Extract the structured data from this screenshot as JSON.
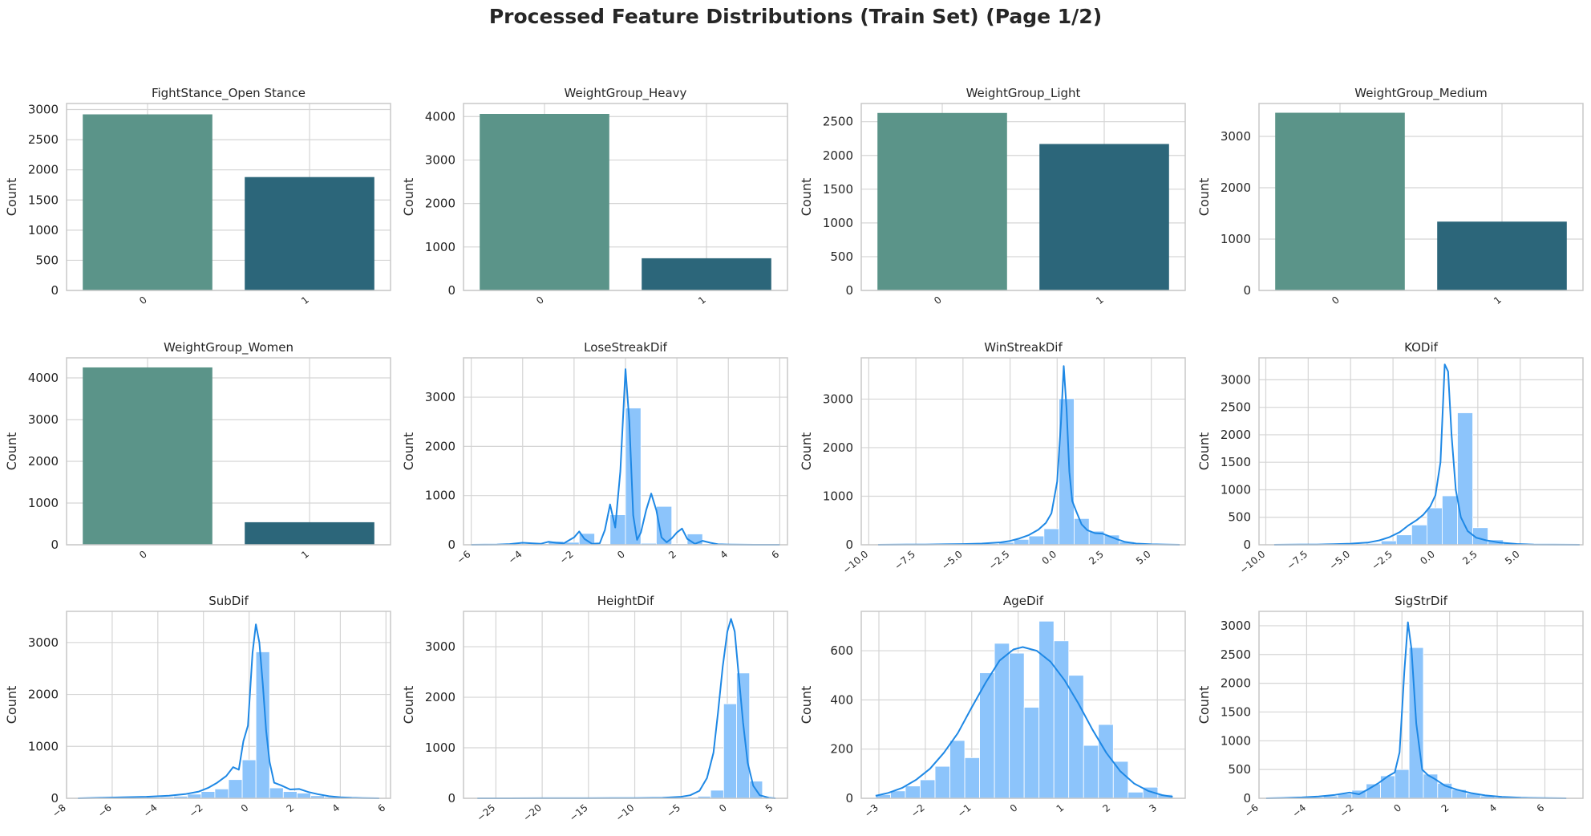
{
  "figure": {
    "title": "Processed Feature Distributions (Train Set) (Page 1/2)"
  },
  "colors": {
    "bar_0": "#5b9489",
    "bar_1": "#2c667a",
    "hist_fill": "#8cc4fb",
    "kde_line": "#1e88e5",
    "grid": "#d5d5d5",
    "spine": "#c8c8c8"
  },
  "chart_data": [
    {
      "type": "bar",
      "title": "FightStance_Open Stance",
      "ylabel": "Count",
      "xlabel": "",
      "categories": [
        "0",
        "1"
      ],
      "values": [
        2920,
        1880
      ],
      "ylim": [
        0,
        3100
      ],
      "yticks": [
        0,
        500,
        1000,
        1500,
        2000,
        2500,
        3000
      ],
      "grid": true
    },
    {
      "type": "bar",
      "title": "WeightGroup_Heavy",
      "ylabel": "Count",
      "xlabel": "",
      "categories": [
        "0",
        "1"
      ],
      "values": [
        4060,
        740
      ],
      "ylim": [
        0,
        4300
      ],
      "yticks": [
        0,
        1000,
        2000,
        3000,
        4000
      ],
      "grid": true
    },
    {
      "type": "bar",
      "title": "WeightGroup_Light",
      "ylabel": "Count",
      "xlabel": "",
      "categories": [
        "0",
        "1"
      ],
      "values": [
        2630,
        2170
      ],
      "ylim": [
        0,
        2770
      ],
      "yticks": [
        0,
        500,
        1000,
        1500,
        2000,
        2500
      ],
      "grid": true
    },
    {
      "type": "bar",
      "title": "WeightGroup_Medium",
      "ylabel": "Count",
      "xlabel": "",
      "categories": [
        "0",
        "1"
      ],
      "values": [
        3460,
        1340
      ],
      "ylim": [
        0,
        3640
      ],
      "yticks": [
        0,
        1000,
        2000,
        3000
      ],
      "grid": true
    },
    {
      "type": "bar",
      "title": "WeightGroup_Women",
      "ylabel": "Count",
      "xlabel": "",
      "categories": [
        "0",
        "1"
      ],
      "values": [
        4250,
        540
      ],
      "ylim": [
        0,
        4480
      ],
      "yticks": [
        0,
        1000,
        2000,
        3000,
        4000
      ],
      "grid": true
    },
    {
      "type": "histogram",
      "title": "LoseStreakDif",
      "ylabel": "Count",
      "xlabel": "",
      "xlim": [
        -6.3,
        6.3
      ],
      "ylim": [
        0,
        3800
      ],
      "xticks": [
        -6,
        -4,
        -2,
        0,
        2,
        4,
        6
      ],
      "yticks": [
        0,
        1000,
        2000,
        3000
      ],
      "bin_edges": [
        -6.0,
        -5.4,
        -4.8,
        -4.2,
        -3.6,
        -3.0,
        -2.4,
        -1.8,
        -1.2,
        -0.6,
        0.0,
        0.6,
        1.2,
        1.8,
        2.4,
        3.0,
        3.6,
        4.2,
        4.8,
        5.4,
        6.0
      ],
      "counts": [
        0,
        0,
        0,
        3,
        20,
        70,
        50,
        230,
        15,
        610,
        2780,
        30,
        780,
        20,
        220,
        20,
        0,
        0,
        0,
        0
      ],
      "kde": {
        "x": [
          -6,
          -5,
          -4.5,
          -4,
          -3.6,
          -3.3,
          -3.0,
          -2.7,
          -2.4,
          -2.0,
          -1.8,
          -1.6,
          -1.3,
          -1.0,
          -0.8,
          -0.6,
          -0.4,
          -0.2,
          0.0,
          0.15,
          0.3,
          0.45,
          0.6,
          0.8,
          1.0,
          1.2,
          1.4,
          1.6,
          1.8,
          2.0,
          2.2,
          2.4,
          2.7,
          3.0,
          3.3,
          3.6,
          4.0,
          4.5,
          5,
          6
        ],
        "y": [
          0,
          5,
          15,
          40,
          30,
          20,
          60,
          40,
          30,
          150,
          270,
          120,
          20,
          30,
          300,
          820,
          350,
          1500,
          3570,
          2500,
          600,
          100,
          250,
          700,
          1040,
          700,
          150,
          50,
          130,
          250,
          330,
          120,
          20,
          80,
          40,
          10,
          5,
          2,
          0,
          0
        ]
      },
      "grid": true
    },
    {
      "type": "histogram",
      "title": "WinStreakDif",
      "ylabel": "Count",
      "xlabel": "",
      "xlim": [
        -10.4,
        6.8
      ],
      "ylim": [
        0,
        3850
      ],
      "xticks": [
        -10.0,
        -7.5,
        -5.0,
        -2.5,
        0.0,
        2.5,
        5.0
      ],
      "yticks": [
        0,
        1000,
        2000,
        3000
      ],
      "bin_edges": [
        -9.5,
        -8.7,
        -7.9,
        -7.1,
        -6.3,
        -5.5,
        -4.7,
        -3.9,
        -3.1,
        -2.3,
        -1.5,
        -0.7,
        0.1,
        0.9,
        1.7,
        2.5,
        3.3,
        4.1,
        4.9,
        5.7,
        6.5
      ],
      "counts": [
        0,
        0,
        0,
        2,
        5,
        10,
        15,
        25,
        50,
        110,
        180,
        330,
        3010,
        540,
        280,
        200,
        60,
        15,
        5,
        0
      ],
      "kde": {
        "x": [
          -9.5,
          -8,
          -7,
          -6,
          -5,
          -4,
          -3,
          -2.5,
          -2,
          -1.5,
          -1.0,
          -0.6,
          -0.3,
          0.0,
          0.2,
          0.35,
          0.5,
          0.65,
          0.8,
          1.0,
          1.3,
          1.6,
          2.0,
          2.4,
          2.8,
          3.2,
          3.6,
          4.2,
          5.0,
          5.8,
          6.5
        ],
        "y": [
          0,
          3,
          5,
          10,
          15,
          25,
          50,
          80,
          130,
          200,
          310,
          450,
          650,
          1300,
          2500,
          3680,
          2800,
          1500,
          900,
          700,
          420,
          300,
          240,
          230,
          170,
          110,
          60,
          25,
          10,
          3,
          0
        ]
      },
      "grid": true
    },
    {
      "type": "histogram",
      "title": "KODif",
      "ylabel": "Count",
      "xlabel": "",
      "xlim": [
        -10.4,
        8.7
      ],
      "ylim": [
        0,
        3400
      ],
      "xticks": [
        -10.0,
        -7.5,
        -5.0,
        -2.5,
        0.0,
        2.5,
        5.0
      ],
      "yticks": [
        0,
        500,
        1000,
        1500,
        2000,
        2500,
        3000
      ],
      "bin_edges": [
        -9.5,
        -8.6,
        -7.7,
        -6.8,
        -5.9,
        -5.0,
        -4.1,
        -3.2,
        -2.3,
        -1.4,
        -0.5,
        0.4,
        1.3,
        2.2,
        3.1,
        4.0,
        4.9,
        5.8,
        6.7,
        7.6,
        8.5
      ],
      "counts": [
        0,
        0,
        0,
        2,
        5,
        10,
        25,
        70,
        180,
        360,
        670,
        890,
        2400,
        310,
        90,
        30,
        10,
        3,
        0,
        0
      ],
      "kde": {
        "x": [
          -9.5,
          -8,
          -7,
          -6,
          -5,
          -4,
          -3.3,
          -2.7,
          -2.1,
          -1.6,
          -1.1,
          -0.7,
          -0.3,
          0.0,
          0.3,
          0.55,
          0.75,
          0.95,
          1.2,
          1.5,
          1.9,
          2.4,
          3.0,
          3.8,
          4.8,
          5.8,
          7.0,
          8.5
        ],
        "y": [
          0,
          3,
          5,
          10,
          20,
          40,
          80,
          140,
          230,
          350,
          450,
          550,
          700,
          900,
          1500,
          3280,
          3150,
          2000,
          1000,
          500,
          250,
          130,
          80,
          40,
          15,
          5,
          2,
          0
        ]
      },
      "grid": true
    },
    {
      "type": "histogram",
      "title": "SubDif",
      "ylabel": "Count",
      "xlabel": "",
      "xlim": [
        -8.0,
        6.2
      ],
      "ylim": [
        0,
        3600
      ],
      "xticks": [
        -8,
        -6,
        -4,
        -2,
        0,
        2,
        4,
        6
      ],
      "yticks": [
        0,
        1000,
        2000,
        3000
      ],
      "bin_edges": [
        -7.5,
        -6.9,
        -6.3,
        -5.7,
        -5.1,
        -4.5,
        -3.9,
        -3.3,
        -2.7,
        -2.1,
        -1.5,
        -0.9,
        -0.3,
        0.3,
        0.9,
        1.5,
        2.1,
        2.7,
        3.3,
        3.9,
        4.5,
        5.1,
        5.7
      ],
      "counts": [
        0,
        0,
        5,
        10,
        15,
        20,
        25,
        40,
        80,
        130,
        180,
        360,
        740,
        2820,
        200,
        130,
        100,
        50,
        25,
        10,
        5,
        0
      ],
      "kde": {
        "x": [
          -7.5,
          -6.5,
          -5.5,
          -4.5,
          -3.5,
          -2.8,
          -2.2,
          -1.8,
          -1.4,
          -1.0,
          -0.7,
          -0.45,
          -0.25,
          -0.05,
          0.15,
          0.3,
          0.45,
          0.6,
          0.75,
          0.9,
          1.1,
          1.4,
          1.8,
          2.2,
          2.6,
          3.0,
          3.5,
          4.0,
          4.5,
          5.0,
          5.7
        ],
        "y": [
          0,
          10,
          20,
          30,
          50,
          80,
          130,
          200,
          300,
          430,
          600,
          550,
          1100,
          1400,
          2800,
          3350,
          3000,
          2200,
          1300,
          700,
          300,
          250,
          170,
          180,
          120,
          80,
          40,
          20,
          10,
          5,
          0
        ]
      },
      "grid": true
    },
    {
      "type": "histogram",
      "title": "HeightDif",
      "ylabel": "Count",
      "xlabel": "",
      "xlim": [
        -28.5,
        6.5
      ],
      "ylim": [
        0,
        3700
      ],
      "xticks": [
        -25,
        -20,
        -15,
        -10,
        -5,
        0,
        5
      ],
      "yticks": [
        0,
        1000,
        2000,
        3000
      ],
      "bin_edges": [
        -27.0,
        -25.6,
        -24.2,
        -22.8,
        -21.4,
        -20.0,
        -18.6,
        -17.2,
        -15.8,
        -14.4,
        -13.0,
        -11.6,
        -10.2,
        -8.8,
        -7.4,
        -6.0,
        -4.6,
        -3.2,
        -1.8,
        -0.4,
        1.0,
        2.4,
        3.8,
        5.2
      ],
      "counts": [
        2,
        0,
        0,
        0,
        0,
        0,
        0,
        0,
        0,
        0,
        0,
        0,
        0,
        0,
        2,
        5,
        20,
        40,
        160,
        1870,
        2480,
        340,
        10
      ],
      "kde": {
        "x": [
          -27,
          -20,
          -15,
          -10,
          -7,
          -5,
          -4,
          -3,
          -2.2,
          -1.5,
          -1.0,
          -0.5,
          0.0,
          0.4,
          0.8,
          1.2,
          1.7,
          2.2,
          2.8,
          3.5,
          4.5,
          5.2
        ],
        "y": [
          0,
          1,
          2,
          5,
          10,
          30,
          60,
          150,
          400,
          900,
          1700,
          2600,
          3300,
          3550,
          3300,
          2500,
          1500,
          700,
          250,
          60,
          10,
          0
        ]
      },
      "grid": true
    },
    {
      "type": "histogram",
      "title": "AgeDif",
      "ylabel": "Count",
      "xlabel": "",
      "xlim": [
        -3.38,
        3.6
      ],
      "ylim": [
        0,
        760
      ],
      "xticks": [
        -3,
        -2,
        -1,
        0,
        1,
        2,
        3
      ],
      "yticks": [
        0,
        200,
        400,
        600
      ],
      "bin_edges": [
        -3.07,
        -2.75,
        -2.43,
        -2.11,
        -1.79,
        -1.47,
        -1.15,
        -0.83,
        -0.51,
        -0.19,
        0.13,
        0.45,
        0.77,
        1.09,
        1.41,
        1.73,
        2.05,
        2.37,
        2.69,
        3.01,
        3.33
      ],
      "counts": [
        15,
        30,
        50,
        75,
        130,
        235,
        165,
        510,
        630,
        590,
        370,
        720,
        640,
        500,
        215,
        300,
        150,
        25,
        45,
        15
      ],
      "kde": {
        "x": [
          -3.07,
          -2.8,
          -2.5,
          -2.2,
          -1.9,
          -1.6,
          -1.3,
          -1.0,
          -0.7,
          -0.4,
          -0.1,
          0.1,
          0.4,
          0.7,
          1.0,
          1.3,
          1.6,
          1.9,
          2.2,
          2.5,
          2.8,
          3.1,
          3.33
        ],
        "y": [
          10,
          22,
          42,
          75,
          120,
          185,
          265,
          370,
          470,
          560,
          605,
          615,
          600,
          555,
          480,
          385,
          280,
          185,
          110,
          60,
          30,
          13,
          6
        ]
      },
      "grid": true
    },
    {
      "type": "histogram",
      "title": "SigStrDif",
      "ylabel": "Count",
      "xlabel": "",
      "xlim": [
        -6.0,
        7.6
      ],
      "ylim": [
        0,
        3250
      ],
      "xticks": [
        -6,
        -4,
        -2,
        0,
        2,
        4,
        6
      ],
      "yticks": [
        0,
        500,
        1000,
        1500,
        2000,
        2500,
        3000
      ],
      "bin_edges": [
        -5.7,
        -5.1,
        -4.5,
        -3.9,
        -3.3,
        -2.7,
        -2.1,
        -1.5,
        -0.9,
        -0.3,
        0.3,
        0.9,
        1.5,
        2.1,
        2.7,
        3.3,
        3.9,
        4.5,
        5.1,
        5.7,
        6.3,
        6.9
      ],
      "counts": [
        2,
        5,
        10,
        20,
        40,
        80,
        140,
        250,
        390,
        500,
        2620,
        420,
        260,
        150,
        80,
        40,
        20,
        10,
        5,
        2,
        0
      ],
      "kde": {
        "x": [
          -5.7,
          -5,
          -4.2,
          -3.5,
          -2.8,
          -2.2,
          -1.8,
          -1.4,
          -1.0,
          -0.6,
          -0.3,
          -0.1,
          0.1,
          0.25,
          0.4,
          0.6,
          0.85,
          1.1,
          1.4,
          1.8,
          2.3,
          2.9,
          3.5,
          4.2,
          5.0,
          6.0,
          6.9
        ],
        "y": [
          0,
          5,
          15,
          30,
          60,
          100,
          70,
          160,
          260,
          380,
          450,
          800,
          2200,
          3060,
          2600,
          1300,
          500,
          400,
          330,
          220,
          150,
          90,
          50,
          25,
          10,
          3,
          0
        ]
      },
      "grid": true
    }
  ]
}
